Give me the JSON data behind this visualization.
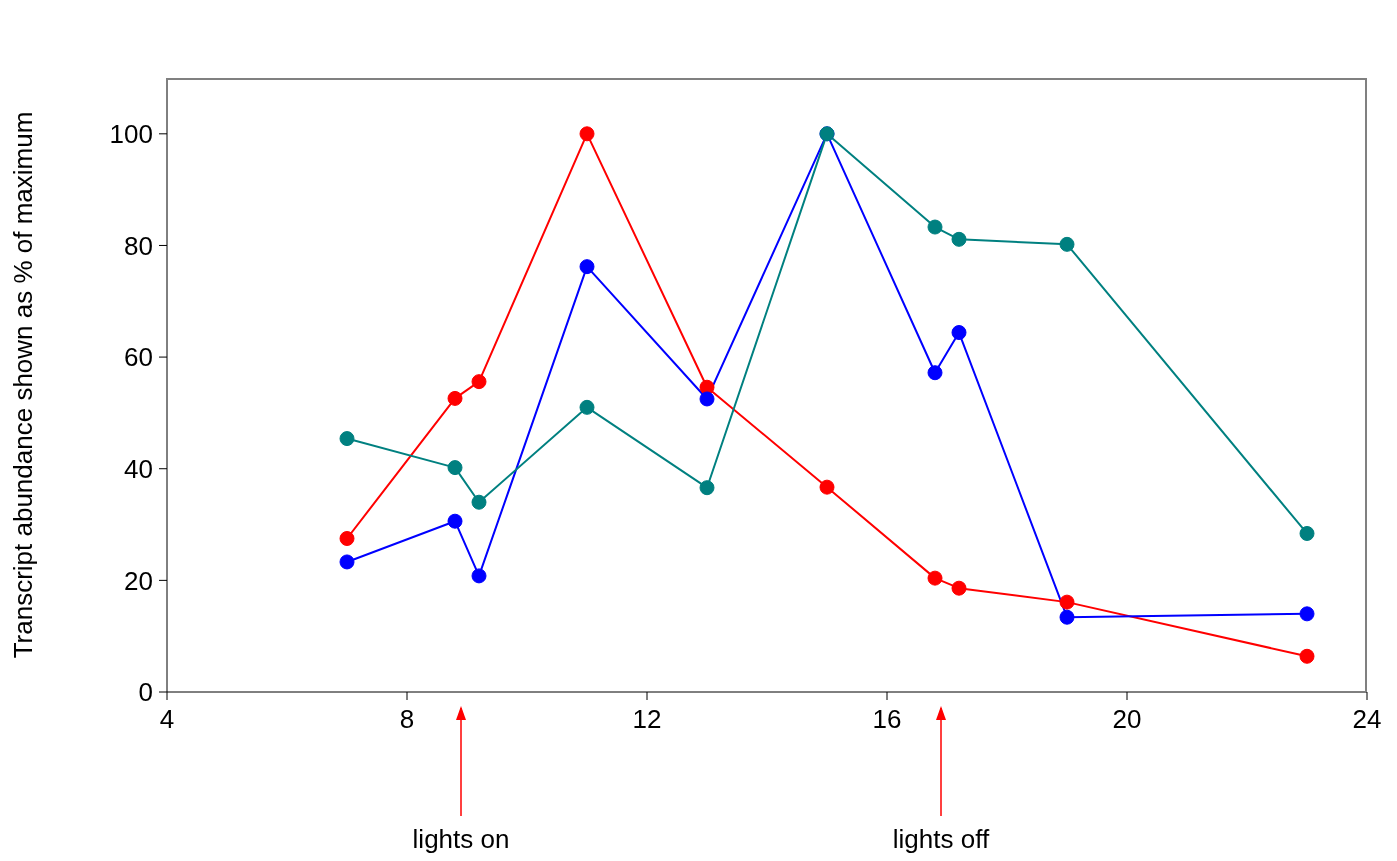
{
  "chart_data": {
    "type": "line",
    "ylabel": "Transcript abundance shown as % of maximum",
    "x": [
      7,
      8.8,
      9.2,
      11,
      13,
      15,
      16.8,
      17.2,
      19,
      23
    ],
    "series": [
      {
        "color": "#ff0000",
        "values": [
          27.5,
          52.6,
          55.6,
          100,
          54.6,
          36.7,
          20.4,
          18.6,
          16.1,
          6.4
        ]
      },
      {
        "color": "#0000ff",
        "values": [
          23.3,
          30.6,
          20.8,
          76.2,
          52.5,
          100,
          57.2,
          64.4,
          13.4,
          14
        ]
      },
      {
        "color": "#008080",
        "values": [
          45.4,
          40.2,
          34,
          51,
          36.6,
          100,
          83.3,
          81.1,
          80.2,
          28.4
        ]
      }
    ],
    "xlim": [
      4,
      24
    ],
    "xticks": [
      4,
      8,
      12,
      16,
      20,
      24
    ],
    "ylim": [
      0,
      110
    ],
    "yticks": [
      0,
      20,
      40,
      60,
      80,
      100
    ],
    "grid": false,
    "legend": false,
    "marker": "circle",
    "line_style": "solid",
    "ref_lines": [
      {
        "axis": "x",
        "value": 8.9,
        "label": "lights on",
        "color": "#ff0000"
      },
      {
        "axis": "x",
        "value": 16.9,
        "label": "lights off",
        "color": "#ff0000"
      }
    ]
  }
}
